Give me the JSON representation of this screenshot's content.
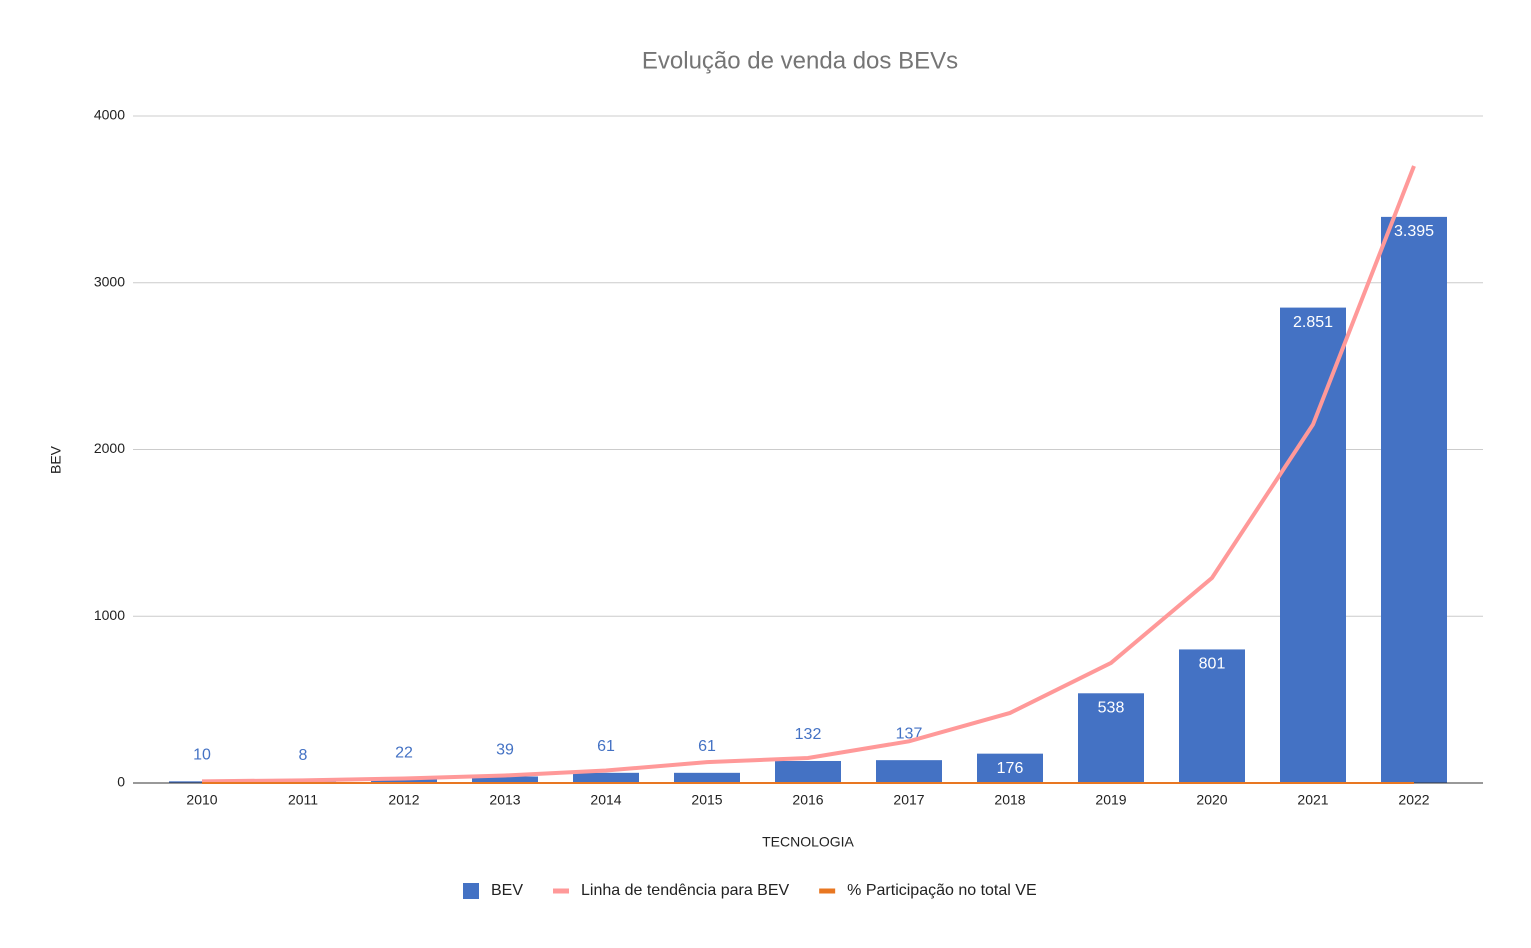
{
  "chart_data": {
    "type": "bar",
    "title": "Evolução de venda dos BEVs",
    "x_label": "TECNOLOGIA",
    "y_label": "BEV",
    "categories": [
      "2010",
      "2011",
      "2012",
      "2013",
      "2014",
      "2015",
      "2016",
      "2017",
      "2018",
      "2019",
      "2020",
      "2021",
      "2022"
    ],
    "series": [
      {
        "name": "BEV",
        "color": "#4472c4",
        "kind": "bar",
        "values": [
          10,
          8,
          22,
          39,
          61,
          61,
          132,
          137,
          176,
          538,
          801,
          2851,
          3395
        ],
        "value_labels": [
          "10",
          "8",
          "22",
          "39",
          "61",
          "61",
          "132",
          "137",
          "176",
          "538",
          "801",
          "2.851",
          "3.395"
        ]
      },
      {
        "name": "Linha de tendência para BEV",
        "color": "#f99",
        "kind": "trend",
        "values": [
          10,
          16,
          27,
          45,
          75,
          125,
          150,
          250,
          420,
          720,
          1230,
          2150,
          3700
        ]
      },
      {
        "name": "% Participação no total VE",
        "color": "#e87722",
        "kind": "line",
        "values": [
          0,
          0,
          0,
          0,
          0,
          0,
          0,
          0,
          0,
          0,
          0,
          0,
          0
        ]
      }
    ],
    "ylim": [
      0,
      4000
    ],
    "yticks": [
      0,
      1000,
      2000,
      3000,
      4000
    ],
    "grid": true,
    "legend": "bottom"
  }
}
